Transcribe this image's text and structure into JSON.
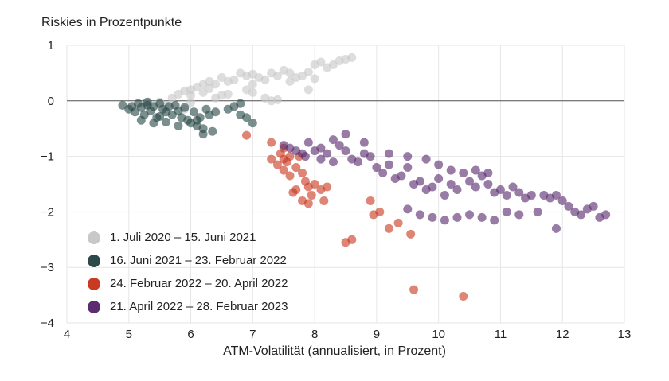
{
  "chart_data": {
    "type": "scatter",
    "title": "",
    "ylabel": "Riskies in Prozentpunkte",
    "xlabel": "ATM-Volatilität (annualisiert, in Prozent)",
    "xlim": [
      4,
      13
    ],
    "ylim": [
      -4,
      1
    ],
    "x_ticks": [
      "4",
      "5",
      "6",
      "7",
      "8",
      "9",
      "10",
      "11",
      "12",
      "13"
    ],
    "y_ticks": [
      "1",
      "0",
      "−1",
      "−2",
      "−3",
      "−4"
    ],
    "grid": true,
    "zero_line": true,
    "legend_position": "bottom-left",
    "series": [
      {
        "name": "1. Juli 2020 – 15. Juni 2021",
        "color": "#c8c8c8",
        "points": [
          [
            5.3,
            -0.05
          ],
          [
            5.5,
            -0.02
          ],
          [
            5.7,
            0.05
          ],
          [
            5.8,
            0.12
          ],
          [
            5.9,
            0.18
          ],
          [
            6.0,
            0.2
          ],
          [
            6.1,
            0.25
          ],
          [
            6.0,
            0.1
          ],
          [
            6.2,
            0.3
          ],
          [
            6.3,
            0.35
          ],
          [
            6.4,
            0.3
          ],
          [
            6.5,
            0.42
          ],
          [
            6.6,
            0.35
          ],
          [
            6.7,
            0.38
          ],
          [
            6.8,
            0.5
          ],
          [
            6.9,
            0.45
          ],
          [
            7.0,
            0.48
          ],
          [
            7.1,
            0.42
          ],
          [
            7.2,
            0.38
          ],
          [
            7.3,
            0.5
          ],
          [
            7.4,
            0.45
          ],
          [
            7.5,
            0.55
          ],
          [
            7.6,
            0.5
          ],
          [
            7.7,
            0.42
          ],
          [
            7.8,
            0.45
          ],
          [
            7.9,
            0.52
          ],
          [
            8.0,
            0.65
          ],
          [
            8.1,
            0.7
          ],
          [
            8.2,
            0.6
          ],
          [
            8.3,
            0.65
          ],
          [
            8.4,
            0.72
          ],
          [
            8.5,
            0.75
          ],
          [
            8.6,
            0.78
          ],
          [
            6.2,
            0.15
          ],
          [
            6.4,
            0.05
          ],
          [
            6.6,
            0.12
          ],
          [
            6.9,
            0.2
          ],
          [
            7.0,
            0.15
          ],
          [
            7.2,
            0.05
          ],
          [
            7.3,
            0.0
          ],
          [
            7.4,
            0.02
          ],
          [
            5.6,
            -0.08
          ],
          [
            6.0,
            -0.03
          ],
          [
            6.5,
            0.1
          ],
          [
            7.0,
            0.3
          ],
          [
            7.6,
            0.35
          ],
          [
            7.9,
            0.2
          ],
          [
            8.0,
            0.4
          ],
          [
            5.9,
            -0.15
          ],
          [
            6.3,
            0.22
          ]
        ]
      },
      {
        "name": "16. Juni 2021 – 23. Februar 2022",
        "color": "#2c4a4a",
        "points": [
          [
            4.9,
            -0.08
          ],
          [
            5.0,
            -0.15
          ],
          [
            5.05,
            -0.1
          ],
          [
            5.1,
            -0.2
          ],
          [
            5.15,
            -0.05
          ],
          [
            5.2,
            -0.12
          ],
          [
            5.25,
            -0.25
          ],
          [
            5.3,
            -0.08
          ],
          [
            5.35,
            -0.18
          ],
          [
            5.4,
            -0.1
          ],
          [
            5.45,
            -0.3
          ],
          [
            5.5,
            -0.05
          ],
          [
            5.55,
            -0.15
          ],
          [
            5.6,
            -0.2
          ],
          [
            5.65,
            -0.1
          ],
          [
            5.7,
            -0.25
          ],
          [
            5.75,
            -0.08
          ],
          [
            5.8,
            -0.18
          ],
          [
            5.85,
            -0.3
          ],
          [
            5.9,
            -0.12
          ],
          [
            5.95,
            -0.35
          ],
          [
            6.0,
            -0.4
          ],
          [
            6.05,
            -0.2
          ],
          [
            6.1,
            -0.45
          ],
          [
            6.15,
            -0.3
          ],
          [
            6.2,
            -0.5
          ],
          [
            6.25,
            -0.15
          ],
          [
            6.3,
            -0.25
          ],
          [
            6.35,
            -0.55
          ],
          [
            6.4,
            -0.2
          ],
          [
            6.6,
            -0.15
          ],
          [
            6.7,
            -0.1
          ],
          [
            6.8,
            -0.05
          ],
          [
            6.9,
            -0.3
          ],
          [
            7.0,
            -0.4
          ],
          [
            6.8,
            -0.25
          ],
          [
            5.2,
            -0.35
          ],
          [
            5.4,
            -0.4
          ],
          [
            5.6,
            -0.38
          ],
          [
            5.8,
            -0.45
          ],
          [
            6.2,
            -0.6
          ],
          [
            6.1,
            -0.35
          ],
          [
            5.3,
            -0.02
          ],
          [
            5.5,
            -0.28
          ]
        ]
      },
      {
        "name": "24. Februar 2022 – 20. April 2022",
        "color": "#c93a22",
        "points": [
          [
            6.9,
            -0.62
          ],
          [
            7.3,
            -0.75
          ],
          [
            7.45,
            -0.95
          ],
          [
            7.5,
            -1.05
          ],
          [
            7.55,
            -1.1
          ],
          [
            7.6,
            -1.0
          ],
          [
            7.4,
            -1.15
          ],
          [
            7.5,
            -1.25
          ],
          [
            7.3,
            -1.05
          ],
          [
            7.7,
            -1.2
          ],
          [
            7.6,
            -1.35
          ],
          [
            7.8,
            -1.3
          ],
          [
            7.85,
            -1.45
          ],
          [
            7.7,
            -1.6
          ],
          [
            7.9,
            -1.55
          ],
          [
            7.95,
            -1.7
          ],
          [
            7.8,
            -1.8
          ],
          [
            7.65,
            -1.65
          ],
          [
            8.0,
            -1.5
          ],
          [
            8.1,
            -1.6
          ],
          [
            8.2,
            -1.55
          ],
          [
            8.15,
            -1.8
          ],
          [
            7.9,
            -1.85
          ],
          [
            8.9,
            -1.8
          ],
          [
            8.95,
            -2.05
          ],
          [
            9.05,
            -2.0
          ],
          [
            9.2,
            -2.3
          ],
          [
            9.35,
            -2.2
          ],
          [
            9.55,
            -2.4
          ],
          [
            8.5,
            -2.55
          ],
          [
            8.6,
            -2.5
          ],
          [
            9.6,
            -3.4
          ],
          [
            10.4,
            -3.52
          ],
          [
            7.5,
            -0.85
          ],
          [
            7.75,
            -1.0
          ]
        ]
      },
      {
        "name": "21. April 2022 – 28. Februar 2023",
        "color": "#5b2c6f",
        "points": [
          [
            7.5,
            -0.8
          ],
          [
            7.6,
            -0.85
          ],
          [
            7.7,
            -0.9
          ],
          [
            7.8,
            -0.95
          ],
          [
            7.85,
            -1.0
          ],
          [
            7.9,
            -0.75
          ],
          [
            8.0,
            -0.9
          ],
          [
            8.1,
            -0.85
          ],
          [
            8.2,
            -0.95
          ],
          [
            8.3,
            -0.7
          ],
          [
            8.4,
            -0.8
          ],
          [
            8.5,
            -0.9
          ],
          [
            8.6,
            -1.05
          ],
          [
            8.7,
            -1.1
          ],
          [
            8.8,
            -0.95
          ],
          [
            8.9,
            -1.0
          ],
          [
            9.0,
            -1.2
          ],
          [
            9.1,
            -1.3
          ],
          [
            9.2,
            -1.15
          ],
          [
            9.3,
            -1.4
          ],
          [
            9.4,
            -1.35
          ],
          [
            9.5,
            -1.2
          ],
          [
            9.6,
            -1.5
          ],
          [
            9.7,
            -1.45
          ],
          [
            9.8,
            -1.6
          ],
          [
            9.9,
            -1.55
          ],
          [
            10.0,
            -1.4
          ],
          [
            10.1,
            -1.7
          ],
          [
            10.2,
            -1.5
          ],
          [
            10.3,
            -1.6
          ],
          [
            10.4,
            -1.3
          ],
          [
            10.5,
            -1.45
          ],
          [
            10.6,
            -1.55
          ],
          [
            10.7,
            -1.35
          ],
          [
            10.8,
            -1.5
          ],
          [
            10.9,
            -1.65
          ],
          [
            11.0,
            -1.6
          ],
          [
            11.1,
            -1.7
          ],
          [
            11.2,
            -1.55
          ],
          [
            11.3,
            -1.65
          ],
          [
            11.4,
            -1.75
          ],
          [
            11.5,
            -1.7
          ],
          [
            11.7,
            -1.7
          ],
          [
            11.8,
            -1.75
          ],
          [
            11.9,
            -1.7
          ],
          [
            12.0,
            -1.8
          ],
          [
            12.1,
            -1.9
          ],
          [
            12.2,
            -2.0
          ],
          [
            12.3,
            -2.05
          ],
          [
            12.4,
            -1.95
          ],
          [
            12.5,
            -1.9
          ],
          [
            12.6,
            -2.1
          ],
          [
            12.7,
            -2.05
          ],
          [
            9.5,
            -1.95
          ],
          [
            9.7,
            -2.05
          ],
          [
            9.9,
            -2.1
          ],
          [
            10.1,
            -2.15
          ],
          [
            10.3,
            -2.1
          ],
          [
            10.5,
            -2.05
          ],
          [
            10.7,
            -2.1
          ],
          [
            10.9,
            -2.15
          ],
          [
            11.1,
            -2.0
          ],
          [
            11.3,
            -2.05
          ],
          [
            11.6,
            -2.0
          ],
          [
            11.9,
            -2.3
          ],
          [
            8.5,
            -0.6
          ],
          [
            8.8,
            -0.75
          ],
          [
            9.2,
            -0.95
          ],
          [
            9.5,
            -1.0
          ],
          [
            9.8,
            -1.05
          ],
          [
            10.0,
            -1.15
          ],
          [
            10.2,
            -1.25
          ],
          [
            10.6,
            -1.25
          ],
          [
            10.8,
            -1.3
          ],
          [
            8.1,
            -1.05
          ],
          [
            8.3,
            -1.1
          ]
        ]
      }
    ]
  }
}
